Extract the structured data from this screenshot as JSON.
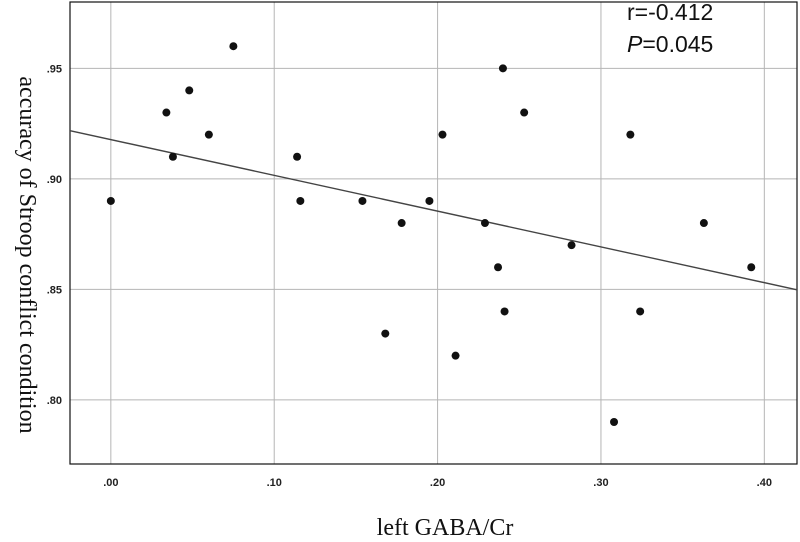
{
  "chart_data": {
    "type": "scatter",
    "xlabel": "left GABA/Cr",
    "ylabel": "accuracy of Stroop conflict condition",
    "xlim": [
      -0.025,
      0.42
    ],
    "ylim": [
      0.771,
      0.98
    ],
    "xticks": [
      {
        "value": 0.0,
        "label": ".00"
      },
      {
        "value": 0.1,
        "label": ".10"
      },
      {
        "value": 0.2,
        "label": ".20"
      },
      {
        "value": 0.3,
        "label": ".30"
      },
      {
        "value": 0.4,
        "label": ".40"
      }
    ],
    "yticks": [
      {
        "value": 0.8,
        "label": ".80"
      },
      {
        "value": 0.85,
        "label": ".85"
      },
      {
        "value": 0.9,
        "label": ".90"
      },
      {
        "value": 0.95,
        "label": ".95"
      }
    ],
    "grid": true,
    "points": [
      {
        "x": 0.0,
        "y": 0.89
      },
      {
        "x": 0.034,
        "y": 0.93
      },
      {
        "x": 0.038,
        "y": 0.91
      },
      {
        "x": 0.048,
        "y": 0.94
      },
      {
        "x": 0.06,
        "y": 0.92
      },
      {
        "x": 0.075,
        "y": 0.96
      },
      {
        "x": 0.114,
        "y": 0.91
      },
      {
        "x": 0.116,
        "y": 0.89
      },
      {
        "x": 0.154,
        "y": 0.89
      },
      {
        "x": 0.168,
        "y": 0.83
      },
      {
        "x": 0.178,
        "y": 0.88
      },
      {
        "x": 0.195,
        "y": 0.89
      },
      {
        "x": 0.203,
        "y": 0.92
      },
      {
        "x": 0.211,
        "y": 0.82
      },
      {
        "x": 0.229,
        "y": 0.88
      },
      {
        "x": 0.237,
        "y": 0.86
      },
      {
        "x": 0.24,
        "y": 0.95
      },
      {
        "x": 0.241,
        "y": 0.84
      },
      {
        "x": 0.253,
        "y": 0.93
      },
      {
        "x": 0.282,
        "y": 0.87
      },
      {
        "x": 0.308,
        "y": 0.79
      },
      {
        "x": 0.318,
        "y": 0.92
      },
      {
        "x": 0.324,
        "y": 0.84
      },
      {
        "x": 0.363,
        "y": 0.88
      },
      {
        "x": 0.392,
        "y": 0.86
      }
    ],
    "fit_line": {
      "x_start": -0.025,
      "y_start": 0.9218,
      "x_end": 0.42,
      "y_end": 0.8498
    },
    "point_color": "#111111",
    "line_color": "#444444",
    "grid_color": "#b5b5b5",
    "annotations": {
      "r_text": "r=-0.412",
      "p_label": "P",
      "p_value": "=0.045"
    }
  }
}
